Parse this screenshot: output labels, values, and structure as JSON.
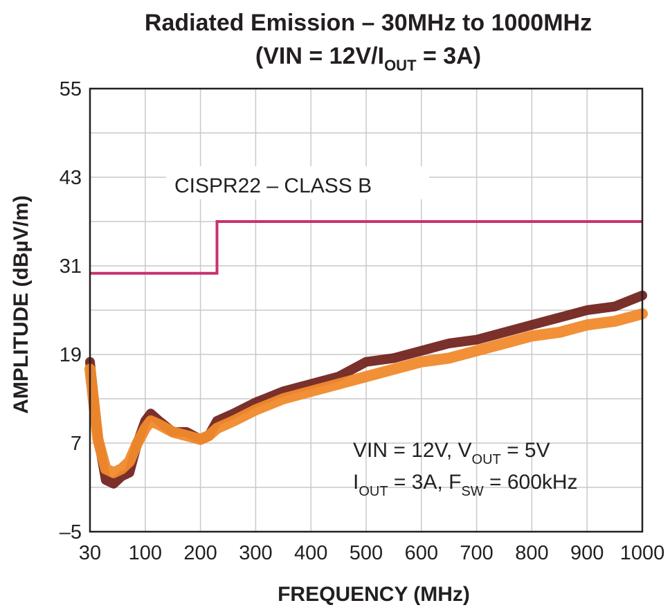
{
  "chart_data": {
    "type": "line",
    "title": {
      "line1": "Radiated Emission – 30MHz to 1000MHz",
      "line2_pre": "(VIN = 12V/I",
      "line2_sub": "OUT",
      "line2_post": " = 3A)"
    },
    "xlabel": "FREQUENCY (MHz)",
    "ylabel": "AMPLITUDE (dBµV/m)",
    "xlim": [
      30,
      1000
    ],
    "ylim": [
      -5,
      55
    ],
    "x_ticks": [
      30,
      100,
      200,
      300,
      400,
      500,
      600,
      700,
      800,
      900,
      1000
    ],
    "y_ticks": [
      55,
      43,
      31,
      19,
      7,
      -5
    ],
    "y_tick_labels": [
      "55",
      "43",
      "31",
      "19",
      "7",
      "–5"
    ],
    "x_tick_labels": [
      "30",
      "100",
      "200",
      "300",
      "400",
      "500",
      "600",
      "700",
      "800",
      "900",
      "1000"
    ],
    "grid": true,
    "limit_line": {
      "label": "CISPR22 – CLASS B",
      "color": "#c8326e",
      "segments": [
        {
          "x": [
            30,
            230
          ],
          "y": 30
        },
        {
          "x": [
            230,
            1000
          ],
          "y": 37
        }
      ]
    },
    "series": [
      {
        "role": "peak",
        "color": "#6b1a14",
        "x": [
          30,
          40,
          50,
          60,
          70,
          80,
          90,
          100,
          110,
          125,
          150,
          175,
          200,
          215,
          230,
          260,
          300,
          350,
          400,
          450,
          500,
          550,
          600,
          650,
          700,
          750,
          800,
          850,
          900,
          950,
          1000
        ],
        "y": [
          18,
          8,
          2,
          1.5,
          2.5,
          3,
          7,
          10,
          11,
          10,
          8.5,
          8.5,
          7.5,
          8,
          10,
          11,
          12.5,
          14,
          15,
          16,
          18,
          18.5,
          19.5,
          20.5,
          21,
          22,
          23,
          24,
          25,
          25.5,
          27
        ]
      },
      {
        "role": "average",
        "color": "#f08a2c",
        "x": [
          30,
          40,
          50,
          60,
          70,
          80,
          90,
          100,
          110,
          125,
          150,
          175,
          200,
          215,
          230,
          260,
          300,
          350,
          400,
          450,
          500,
          550,
          600,
          650,
          700,
          750,
          800,
          850,
          900,
          950,
          1000
        ],
        "y": [
          17,
          7.5,
          3.5,
          3,
          3.5,
          4.5,
          7,
          9,
          10,
          9.5,
          8.5,
          8,
          7.5,
          8,
          9,
          10,
          11.5,
          13,
          14,
          15,
          16,
          17,
          18,
          18.5,
          19.5,
          20.5,
          21.5,
          22,
          23,
          23.5,
          24.5
        ]
      }
    ],
    "annotation": {
      "line1_pre": "VIN = 12V, V",
      "line1_sub": "OUT",
      "line1_post": " = 5V",
      "line2_pre": "I",
      "line2_sub": "OUT",
      "line2_mid": " = 3A, F",
      "line2_sub2": "SW",
      "line2_post": " = 600kHz"
    }
  }
}
